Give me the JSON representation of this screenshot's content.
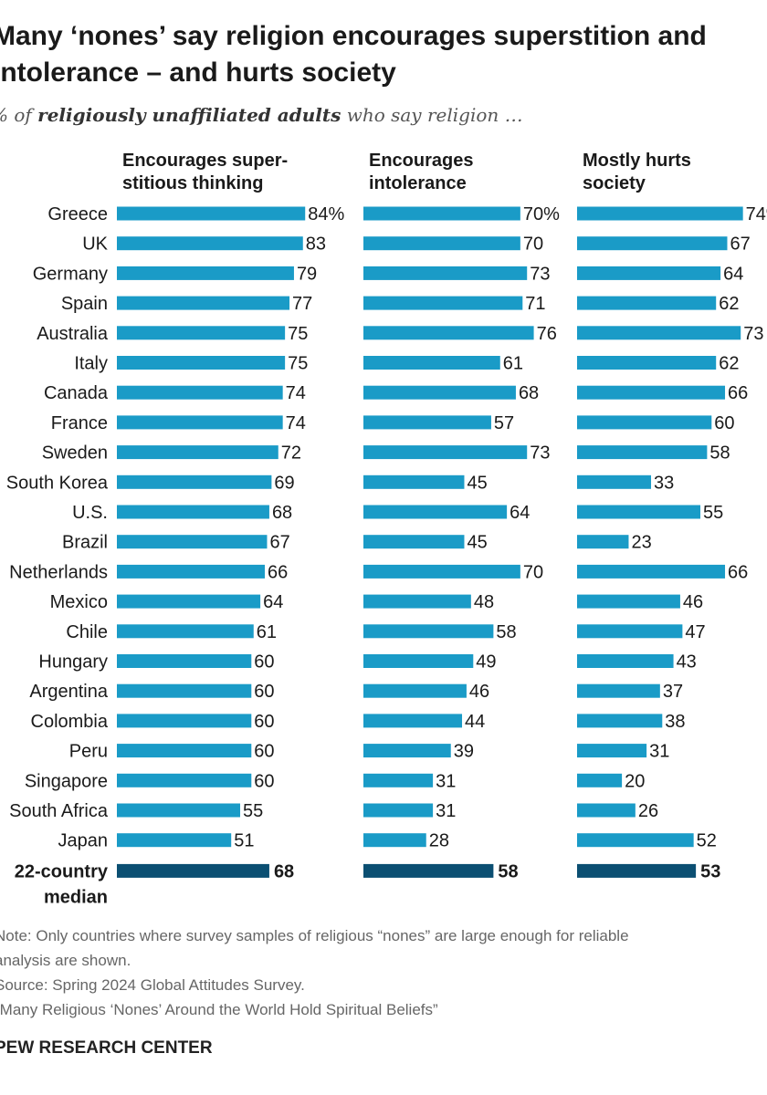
{
  "title_line1": "Many ‘nones’ say religion encourages superstition and",
  "title_line2": "intolerance – and hurts society",
  "subtitle": {
    "prefix": "% of ",
    "emphasis": "religiously unaffiliated adults",
    "suffix": " who say religion …"
  },
  "colors": {
    "bar": "#1a9bc7",
    "median_bar": "#0b4f72"
  },
  "chart_data": {
    "type": "bar",
    "orientation": "horizontal",
    "categories": [
      "Greece",
      "UK",
      "Germany",
      "Spain",
      "Australia",
      "Italy",
      "Canada",
      "France",
      "Sweden",
      "South Korea",
      "U.S.",
      "Brazil",
      "Netherlands",
      "Mexico",
      "Chile",
      "Hungary",
      "Argentina",
      "Colombia",
      "Peru",
      "Singapore",
      "South Africa",
      "Japan"
    ],
    "series": [
      {
        "name": "Encourages superstitious thinking",
        "header_lines": [
          "Encourages super-",
          "stitious thinking"
        ],
        "values": [
          84,
          83,
          79,
          77,
          75,
          75,
          74,
          74,
          72,
          69,
          68,
          67,
          66,
          64,
          61,
          60,
          60,
          60,
          60,
          60,
          55,
          51
        ],
        "median": 68
      },
      {
        "name": "Encourages intolerance",
        "header_lines": [
          "Encourages",
          "intolerance"
        ],
        "values": [
          70,
          70,
          73,
          71,
          76,
          61,
          68,
          57,
          73,
          45,
          64,
          45,
          70,
          48,
          58,
          49,
          46,
          44,
          39,
          31,
          31,
          28
        ],
        "median": 58
      },
      {
        "name": "Mostly hurts society",
        "header_lines": [
          "Mostly hurts",
          "society"
        ],
        "values": [
          74,
          67,
          64,
          62,
          73,
          62,
          66,
          60,
          58,
          33,
          55,
          23,
          66,
          46,
          47,
          43,
          37,
          38,
          31,
          20,
          26,
          52
        ],
        "median": 53
      }
    ],
    "median_label_lines": [
      "22-country",
      "median"
    ],
    "first_value_suffix": "%"
  },
  "notes": {
    "note_line1": "Note: Only countries where survey samples of religious “nones” are large enough for reliable",
    "note_line2": "analysis are shown.",
    "source": "Source: Spring 2024 Global Attitudes Survey.",
    "report": "“Many Religious ‘Nones’ Around the World Hold Spiritual Beliefs”"
  },
  "brand": "PEW RESEARCH CENTER"
}
